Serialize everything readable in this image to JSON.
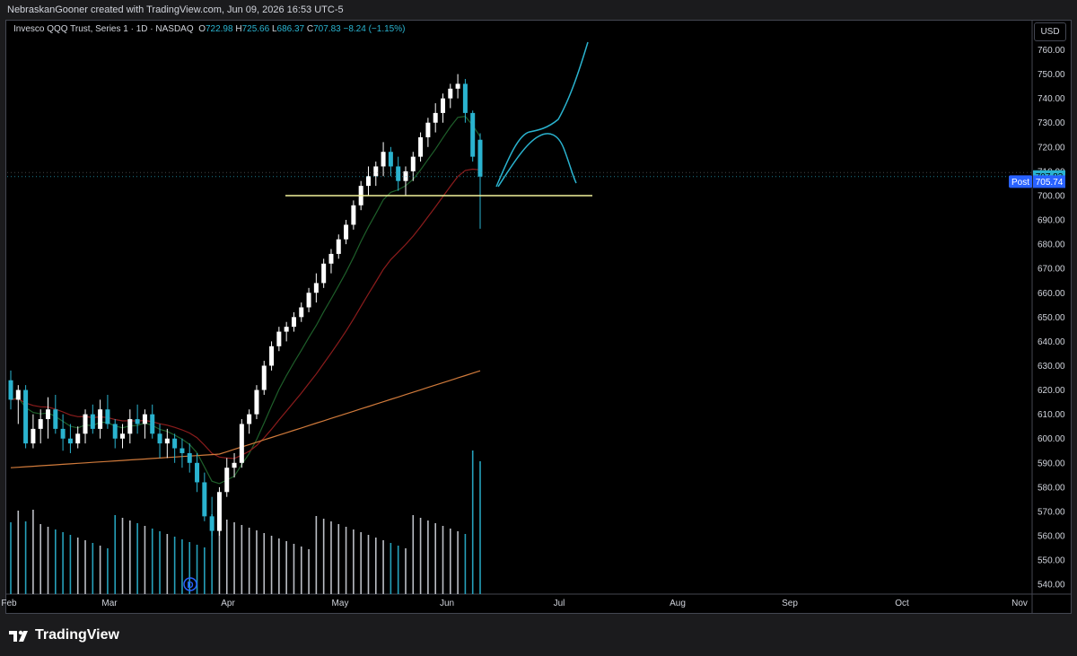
{
  "header": {
    "attribution": "NebraskanGooner created with TradingView.com, Jun 09, 2026 16:53 UTC-5"
  },
  "legend": {
    "symbol": "Invesco QQQ Trust, Series 1 · 1D · NASDAQ",
    "open_label": "O",
    "open": "722.98",
    "high_label": "H",
    "high": "725.66",
    "low_label": "L",
    "low": "686.37",
    "close_label": "C",
    "close": "707.83",
    "change": "−8.24 (−1.15%)"
  },
  "currency": "USD",
  "brand": {
    "name": "TradingView",
    "icon": "tradingview-logo-icon"
  },
  "colors": {
    "background": "#000000",
    "frame": "#1b1b1d",
    "up": "#ffffff",
    "down": "#2ab3cf",
    "ema_fast": "#1e5f2a",
    "ema_mid": "#8c1c1c",
    "ma_slow": "#d07a3b",
    "support": "#f3f39a",
    "projection": "#2ab3cf",
    "post_badge": "#2962ff"
  },
  "chart_data": {
    "type": "candlestick",
    "symbol": "QQQ",
    "timeframe": "1D",
    "yaxis": {
      "ticks": [
        540,
        550,
        560,
        570,
        580,
        590,
        600,
        610,
        620,
        630,
        640,
        650,
        660,
        670,
        680,
        690,
        700,
        710,
        720,
        730,
        740,
        750,
        760
      ],
      "range": [
        536,
        772
      ]
    },
    "xaxis_labels": [
      "Feb",
      "Mar",
      "Apr",
      "May",
      "Jun",
      "Jul",
      "Aug",
      "Sep",
      "Oct",
      "Nov"
    ],
    "price_labels": [
      {
        "label": "",
        "value": "707.83",
        "color": "#2ab3cf"
      },
      {
        "label": "Post",
        "value": "705.74",
        "color": "#2962ff"
      }
    ],
    "event_marker": "D",
    "candles": [
      [
        624,
        628,
        612,
        616
      ],
      [
        616,
        622,
        606,
        620
      ],
      [
        620,
        622,
        596,
        598
      ],
      [
        598,
        610,
        596,
        604
      ],
      [
        604,
        612,
        598,
        608
      ],
      [
        608,
        617,
        600,
        612
      ],
      [
        612,
        618,
        602,
        604
      ],
      [
        604,
        610,
        595,
        600
      ],
      [
        600,
        606,
        594,
        598
      ],
      [
        598,
        605,
        596,
        602
      ],
      [
        602,
        612,
        598,
        610
      ],
      [
        610,
        614,
        602,
        604
      ],
      [
        604,
        616,
        600,
        612
      ],
      [
        612,
        618,
        604,
        606
      ],
      [
        606,
        608,
        596,
        600
      ],
      [
        600,
        606,
        596,
        602
      ],
      [
        602,
        612,
        598,
        608
      ],
      [
        608,
        614,
        602,
        606
      ],
      [
        606,
        612,
        600,
        610
      ],
      [
        610,
        614,
        600,
        602
      ],
      [
        602,
        606,
        592,
        598
      ],
      [
        598,
        604,
        592,
        600
      ],
      [
        600,
        602,
        590,
        596
      ],
      [
        596,
        600,
        588,
        594
      ],
      [
        594,
        598,
        586,
        590
      ],
      [
        590,
        594,
        578,
        582
      ],
      [
        582,
        586,
        566,
        568
      ],
      [
        568,
        576,
        560,
        562
      ],
      [
        562,
        580,
        560,
        578
      ],
      [
        578,
        592,
        576,
        588
      ],
      [
        588,
        594,
        584,
        590
      ],
      [
        590,
        608,
        588,
        606
      ],
      [
        606,
        612,
        602,
        610
      ],
      [
        610,
        622,
        608,
        620
      ],
      [
        620,
        632,
        618,
        630
      ],
      [
        630,
        640,
        628,
        638
      ],
      [
        638,
        646,
        636,
        644
      ],
      [
        644,
        648,
        640,
        646
      ],
      [
        646,
        652,
        644,
        650
      ],
      [
        650,
        656,
        648,
        654
      ],
      [
        654,
        662,
        652,
        660
      ],
      [
        660,
        668,
        656,
        664
      ],
      [
        664,
        674,
        662,
        672
      ],
      [
        672,
        678,
        668,
        676
      ],
      [
        676,
        684,
        674,
        682
      ],
      [
        682,
        690,
        680,
        688
      ],
      [
        688,
        698,
        686,
        696
      ],
      [
        696,
        706,
        694,
        704
      ],
      [
        704,
        712,
        700,
        708
      ],
      [
        708,
        714,
        704,
        712
      ],
      [
        712,
        722,
        708,
        718
      ],
      [
        718,
        720,
        708,
        712
      ],
      [
        712,
        716,
        702,
        706
      ],
      [
        706,
        712,
        700,
        710
      ],
      [
        710,
        718,
        706,
        716
      ],
      [
        716,
        726,
        714,
        724
      ],
      [
        724,
        732,
        720,
        730
      ],
      [
        730,
        738,
        726,
        734
      ],
      [
        734,
        742,
        730,
        740
      ],
      [
        740,
        746,
        736,
        744
      ],
      [
        744,
        750,
        740,
        746
      ],
      [
        746,
        748,
        730,
        734
      ],
      [
        734,
        735,
        714,
        716
      ],
      [
        722.98,
        725.66,
        686.37,
        707.83
      ]
    ],
    "projection": {
      "path_1": [
        706,
        726,
        722,
        758
      ],
      "path_2": [
        706,
        724,
        704
      ]
    },
    "support_level": 700
  }
}
